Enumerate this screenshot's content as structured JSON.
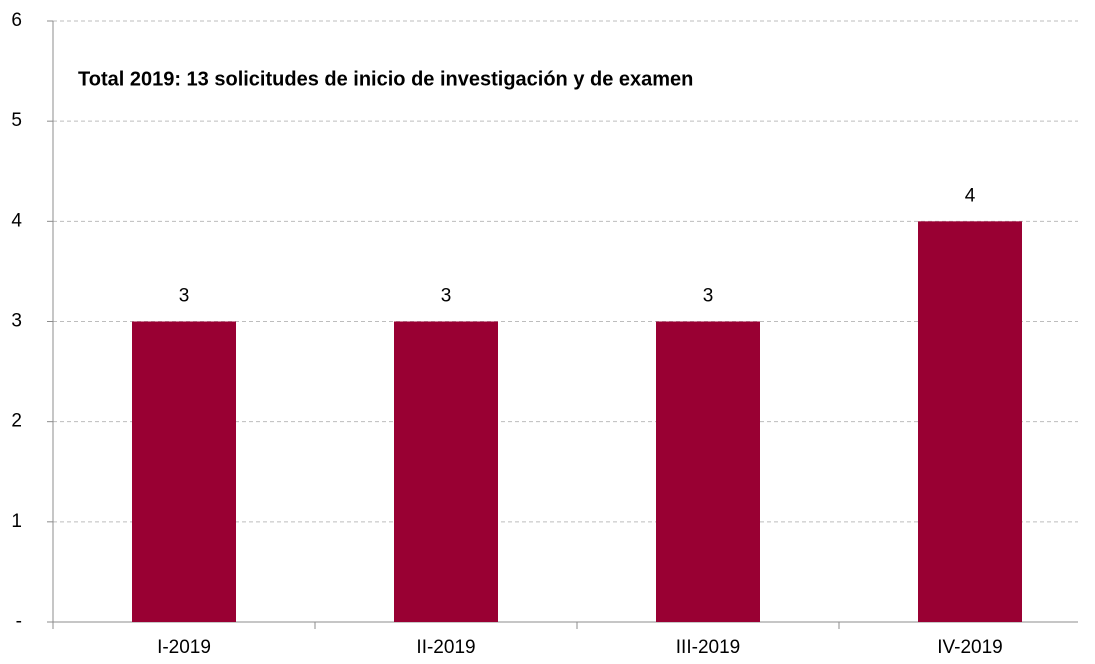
{
  "chart_data": {
    "type": "bar",
    "annotation": "Total 2019: 13 solicitudes de inicio de investigación y de examen",
    "categories": [
      "I-2019",
      "II-2019",
      "III-2019",
      "IV-2019"
    ],
    "values": [
      3,
      3,
      3,
      4
    ],
    "color": "#990033",
    "ylim": [
      0,
      6
    ],
    "yticks": [
      {
        "value": 0,
        "label": "-"
      },
      1,
      2,
      3,
      4,
      5,
      6
    ],
    "grid": true
  }
}
